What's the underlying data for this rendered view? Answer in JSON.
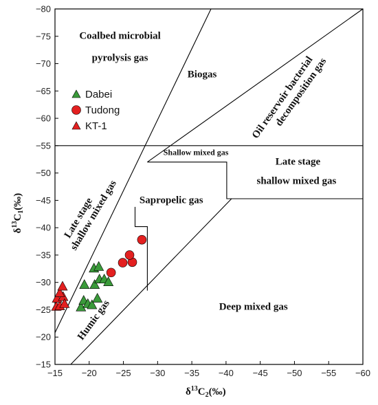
{
  "chart_data": {
    "type": "scatter",
    "xlabel": {
      "main": "δ",
      "sup": "13",
      "sym": "C",
      "sub": "2",
      "unit": "(‰)"
    },
    "ylabel": {
      "main": "δ",
      "sup": "13",
      "sym": "C",
      "sub": "1",
      "unit": "(‰)"
    },
    "xlim": [
      -15,
      -60
    ],
    "ylim": [
      -15,
      -80
    ],
    "x_ticks": [
      -15,
      -20,
      -25,
      -30,
      -35,
      -40,
      -45,
      -50,
      -55,
      -60
    ],
    "y_ticks": [
      -15,
      -20,
      -25,
      -30,
      -35,
      -40,
      -45,
      -50,
      -55,
      -60,
      -65,
      -70,
      -75,
      -80
    ],
    "grid": false,
    "legend_position": "upper-left",
    "series": [
      {
        "name": "Dabei",
        "marker": "triangle",
        "color": "#3a9a3a",
        "points": [
          [
            -18.8,
            -25.4
          ],
          [
            -19.2,
            -26.6
          ],
          [
            -19.8,
            -26.0
          ],
          [
            -20.4,
            -25.8
          ],
          [
            -21.2,
            -27.0
          ],
          [
            -19.3,
            -29.5
          ],
          [
            -20.8,
            -29.5
          ],
          [
            -21.5,
            -30.5
          ],
          [
            -22.2,
            -30.5
          ],
          [
            -22.8,
            -30.0
          ],
          [
            -20.7,
            -32.5
          ],
          [
            -21.4,
            -32.8
          ]
        ]
      },
      {
        "name": "Tudong",
        "marker": "circle",
        "color": "#e32020",
        "points": [
          [
            -23.2,
            -31.8
          ],
          [
            -24.9,
            -33.6
          ],
          [
            -26.3,
            -33.7
          ],
          [
            -25.9,
            -35.0
          ],
          [
            -27.7,
            -37.8
          ]
        ]
      },
      {
        "name": "KT-1",
        "marker": "triangle",
        "color": "#e32020",
        "points": [
          [
            -15.2,
            -25.5
          ],
          [
            -15.7,
            -25.6
          ],
          [
            -15.3,
            -27.0
          ],
          [
            -16.2,
            -27.3
          ],
          [
            -16.4,
            -26.0
          ],
          [
            -15.7,
            -28.0
          ],
          [
            -16.1,
            -29.2
          ]
        ]
      }
    ],
    "boundaries": {
      "line_humic_top": [
        [
          -15,
          -20.8
        ],
        [
          -37.8,
          -80
        ]
      ],
      "line_humic_bottom": [
        [
          -17.3,
          -15
        ],
        [
          -40.8,
          -45.3
        ]
      ],
      "line_oil_biogas": [
        [
          -28.5,
          -52
        ],
        [
          -60,
          -80
        ]
      ],
      "hline_55": [
        [
          -15,
          -55
        ],
        [
          -60,
          -55
        ]
      ],
      "shallow_mixed_box": [
        [
          -28.5,
          -52
        ],
        [
          -40.1,
          -52
        ],
        [
          -40.1,
          -45.3
        ],
        [
          -60,
          -45.3
        ]
      ],
      "sapropelic_box": [
        [
          -26.7,
          -43.8
        ],
        [
          -26.7,
          -40.2
        ],
        [
          -28.5,
          -40.2
        ],
        [
          -28.5,
          -28.5
        ]
      ]
    },
    "regions": [
      {
        "label": "Coalbed microbial",
        "x": -24.5,
        "y": -74.5,
        "rotate": 0,
        "size": 15
      },
      {
        "label": "pyrolysis gas",
        "x": -24.5,
        "y": -70.5,
        "rotate": 0,
        "size": 15
      },
      {
        "label": "Biogas",
        "x": -36.5,
        "y": -67.5,
        "rotate": 0,
        "size": 15
      },
      {
        "label": "Oil reservoir bacterial",
        "x": -48.6,
        "y": -63.5,
        "rotate": -55,
        "size": 15
      },
      {
        "label": "decomposition gas",
        "x": -51.3,
        "y": -64.5,
        "rotate": -55,
        "size": 15
      },
      {
        "label": "Shallow mixed gas",
        "x": -35.6,
        "y": -53.3,
        "rotate": 0,
        "size": 12
      },
      {
        "label": "Late stage",
        "x": -50.5,
        "y": -51.5,
        "rotate": 0,
        "size": 15
      },
      {
        "label": "shallow mixed gas",
        "x": -50.3,
        "y": -48.0,
        "rotate": 0,
        "size": 15
      },
      {
        "label": "Sapropelic gas",
        "x": -32.0,
        "y": -44.5,
        "rotate": 0,
        "size": 15
      },
      {
        "label": "Late stage",
        "x": -18.8,
        "y": -41.5,
        "rotate": -59,
        "size": 15
      },
      {
        "label": "shallow mixed gas",
        "x": -21.0,
        "y": -42.0,
        "rotate": -59,
        "size": 15
      },
      {
        "label": "Humic gas",
        "x": -21.0,
        "y": -22.8,
        "rotate": -54,
        "size": 15
      },
      {
        "label": "Deep mixed gas",
        "x": -44.0,
        "y": -25.0,
        "rotate": 0,
        "size": 15
      }
    ]
  }
}
